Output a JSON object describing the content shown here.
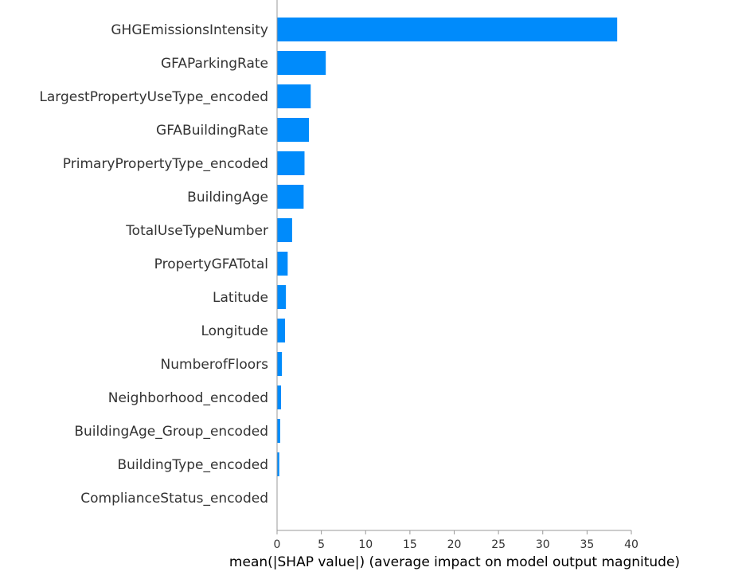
{
  "chart_data": {
    "type": "bar",
    "orientation": "horizontal",
    "categories": [
      "GHGEmissionsIntensity",
      "GFAParkingRate",
      "LargestPropertyUseType_encoded",
      "GFABuildingRate",
      "PrimaryPropertyType_encoded",
      "BuildingAge",
      "TotalUseTypeNumber",
      "PropertyGFATotal",
      "Latitude",
      "Longitude",
      "NumberofFloors",
      "Neighborhood_encoded",
      "BuildingAge_Group_encoded",
      "BuildingType_encoded",
      "ComplianceStatus_encoded"
    ],
    "values": [
      38.4,
      5.5,
      3.8,
      3.6,
      3.1,
      3.0,
      1.7,
      1.2,
      1.0,
      0.9,
      0.55,
      0.45,
      0.35,
      0.25,
      0.0
    ],
    "xlabel": "mean(|SHAP value|) (average impact on model output magnitude)",
    "xlim": [
      0,
      40
    ],
    "xticks": [
      0,
      5,
      10,
      15,
      20,
      25,
      30,
      35,
      40
    ],
    "grid": false,
    "bar_color": "#008bfb",
    "axis_color": "#999999",
    "text_color": "#333333"
  }
}
